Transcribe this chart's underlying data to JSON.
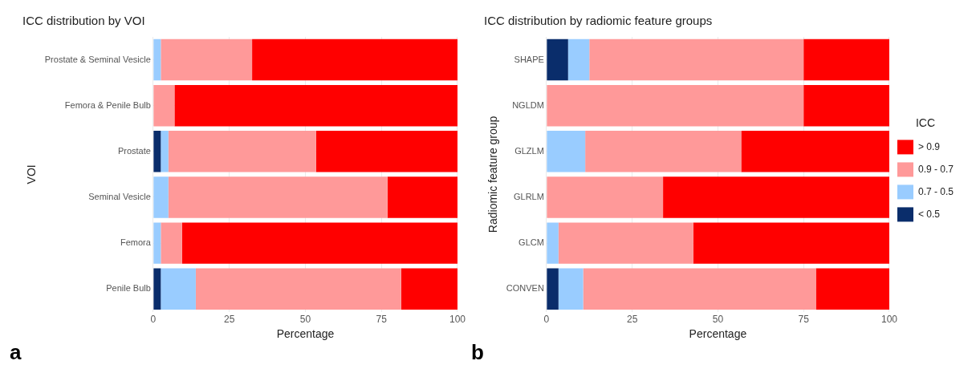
{
  "chart_data": [
    {
      "type": "bar",
      "orientation": "horizontal",
      "stacked": true,
      "title": "ICC distribution by VOI",
      "xlabel": "Percentage",
      "ylabel": "VOI",
      "categories": [
        "Prostate & Seminal Vesicle",
        "Femora & Penile Bulb",
        "Prostate",
        "Seminal Vesicle",
        "Femora",
        "Penile Bulb"
      ],
      "series": [
        {
          "color": "#0a2d6b",
          "values": [
            0,
            0,
            2.5,
            0,
            0,
            2.5
          ]
        },
        {
          "color": "#99ccff",
          "values": [
            2.5,
            0,
            2.5,
            5,
            2.5,
            11.5
          ]
        },
        {
          "color": "#ff9999",
          "values": [
            30,
            7,
            48.5,
            72,
            7,
            67.5
          ]
        },
        {
          "color": "#ff0000",
          "values": [
            67.5,
            93,
            46.5,
            23,
            90.5,
            18.5
          ]
        }
      ],
      "xlim": [
        0,
        100
      ],
      "xticks": [
        0,
        25,
        50,
        75,
        100
      ],
      "grid": true,
      "legend": false,
      "annotations": [
        "a"
      ]
    },
    {
      "type": "bar",
      "orientation": "horizontal",
      "stacked": true,
      "title": "ICC distribution by radiomic feature groups",
      "xlabel": "Percentage",
      "ylabel": "Radiomic feature group",
      "legend_title": "ICC",
      "categories": [
        "SHAPE",
        "NGLDM",
        "GLZLM",
        "GLRLM",
        "GLCM",
        "CONVEN"
      ],
      "series": [
        {
          "name": "< 0.5",
          "color": "#0a2d6b",
          "values": [
            6.3,
            0,
            0,
            0,
            0,
            3.5
          ]
        },
        {
          "name": "0.7 - 0.5",
          "color": "#99ccff",
          "values": [
            6.2,
            0,
            11.3,
            0,
            3.5,
            7.2
          ]
        },
        {
          "name": "0.9 - 0.7",
          "color": "#ff9999",
          "values": [
            62.5,
            75,
            45.5,
            34,
            39.3,
            67.9
          ]
        },
        {
          "name": "> 0.9",
          "color": "#ff0000",
          "values": [
            25,
            25,
            43.2,
            66,
            57.2,
            21.4
          ]
        }
      ],
      "xlim": [
        0,
        100
      ],
      "xticks": [
        0,
        25,
        50,
        75,
        100
      ],
      "grid": true,
      "legend": "right",
      "annotations": [
        "b"
      ]
    }
  ]
}
